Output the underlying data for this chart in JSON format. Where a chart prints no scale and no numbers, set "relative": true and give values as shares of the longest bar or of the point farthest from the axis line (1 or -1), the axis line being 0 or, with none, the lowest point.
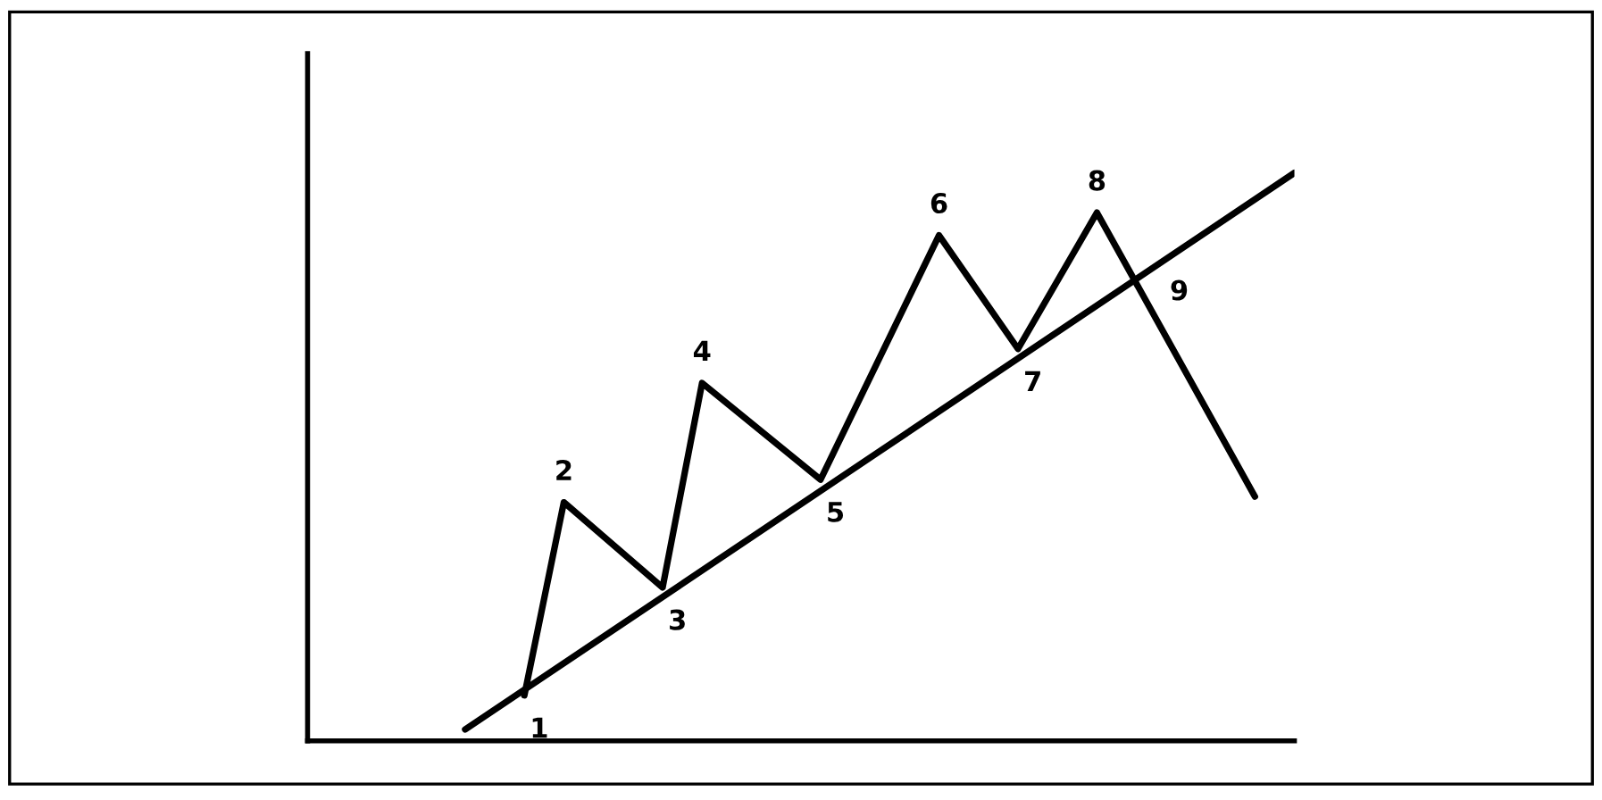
{
  "chart_data": {
    "type": "line",
    "relative": true,
    "legend": false,
    "marker": "none",
    "line_style": "solid",
    "categories": [
      null,
      null,
      null,
      null,
      null,
      null,
      null,
      null,
      null,
      null,
      null,
      null,
      null,
      null,
      null,
      null,
      null,
      null,
      null,
      null,
      null,
      null,
      null,
      null,
      null,
      null,
      null,
      null,
      null,
      null,
      null,
      null,
      null,
      null,
      null,
      null,
      null,
      null,
      null,
      null,
      null,
      null,
      null
    ],
    "series": [
      {
        "color": "#000000",
        "values": [
          null,
          null,
          null,
          0.08,
          null,
          0.42,
          null,
          null,
          null,
          null,
          0.27,
          null,
          0.63,
          null,
          null,
          null,
          null,
          null,
          0.46,
          null,
          null,
          null,
          null,
          null,
          0.89,
          null,
          null,
          null,
          0.69,
          null,
          null,
          null,
          0.93,
          null,
          null,
          null,
          null,
          null,
          null,
          null,
          0.43,
          null,
          null
        ]
      },
      {
        "color": "#000000",
        "values": [
          0.02,
          null,
          null,
          null,
          null,
          null,
          null,
          null,
          null,
          null,
          null,
          null,
          null,
          null,
          null,
          null,
          null,
          null,
          null,
          null,
          null,
          null,
          null,
          null,
          null,
          null,
          null,
          null,
          null,
          null,
          null,
          null,
          null,
          null,
          null,
          null,
          null,
          null,
          null,
          null,
          null,
          null,
          1.0
        ]
      }
    ],
    "annotations": [
      "1",
      "2",
      "3",
      "4",
      "5",
      "6",
      "7",
      "8",
      "9"
    ]
  }
}
